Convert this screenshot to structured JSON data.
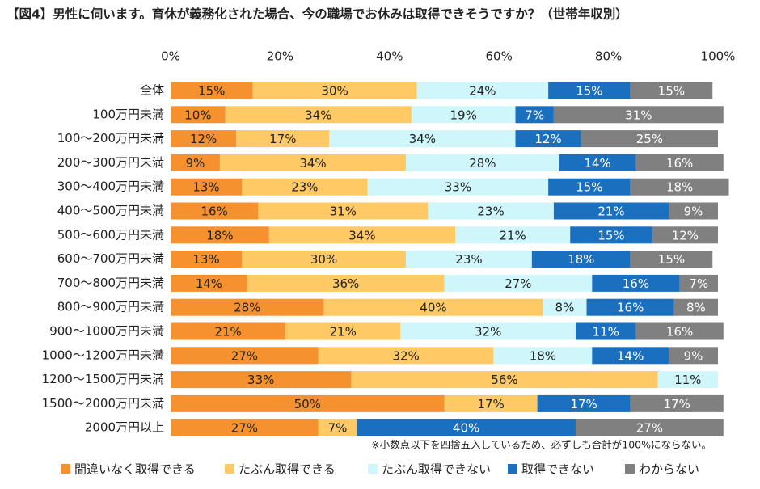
{
  "chart_data": {
    "type": "stacked-bar-horizontal",
    "title": "【図4】男性に伺います。育休が義務化された場合、今の職場でお休みは取得できそうですか？（世帯年収別）",
    "note": "※小数点以下を四捨五入しているため、必ずしも合計が100%にならない。",
    "xlim": [
      0,
      100
    ],
    "xticks": [
      {
        "value": 0,
        "label": "0%"
      },
      {
        "value": 20,
        "label": "20%"
      },
      {
        "value": 40,
        "label": "40%"
      },
      {
        "value": 60,
        "label": "60%"
      },
      {
        "value": 80,
        "label": "80%"
      },
      {
        "value": 100,
        "label": "100%"
      }
    ],
    "grid": false,
    "legend": "bottom",
    "categories": [
      "全体",
      "100万円未満",
      "100～200万円未満",
      "200～300万円未満",
      "300～400万円未満",
      "400～500万円未満",
      "500～600万円未満",
      "600～700万円未満",
      "700～800万円未満",
      "800～900万円未満",
      "900～1000万円未満",
      "1000～1200万円未満",
      "1200～1500万円未満",
      "1500～2000万円未満",
      "2000万円以上"
    ],
    "series": [
      {
        "name": "間違いなく取得できる",
        "color": "#f5922f",
        "label_color": "#222",
        "values": [
          15,
          10,
          12,
          9,
          13,
          16,
          18,
          13,
          14,
          28,
          21,
          27,
          33,
          50,
          27
        ],
        "value_labels": [
          "15%",
          "10%",
          "12%",
          "9%",
          "13%",
          "16%",
          "18%",
          "13%",
          "14%",
          "28%",
          "21%",
          "27%",
          "33%",
          "50%",
          "27%"
        ]
      },
      {
        "name": "たぶん取得できる",
        "color": "#ffc966",
        "label_color": "#222",
        "values": [
          30,
          34,
          17,
          34,
          23,
          31,
          34,
          30,
          36,
          40,
          21,
          32,
          56,
          17,
          7
        ],
        "value_labels": [
          "30%",
          "34%",
          "17%",
          "34%",
          "23%",
          "31%",
          "34%",
          "30%",
          "36%",
          "40%",
          "21%",
          "32%",
          "56%",
          "17%",
          "7%"
        ]
      },
      {
        "name": "たぶん取得できない",
        "color": "#cff7fb",
        "label_color": "#222",
        "values": [
          24,
          19,
          34,
          28,
          33,
          23,
          21,
          23,
          27,
          8,
          32,
          18,
          11,
          0,
          0
        ],
        "value_labels": [
          "24%",
          "19%",
          "34%",
          "28%",
          "33%",
          "23%",
          "21%",
          "23%",
          "27%",
          "8%",
          "32%",
          "18%",
          "11%",
          null,
          null
        ]
      },
      {
        "name": "取得できない",
        "color": "#1b6fbf",
        "label_color": "#fff",
        "values": [
          15,
          7,
          12,
          14,
          15,
          21,
          15,
          18,
          16,
          16,
          11,
          14,
          0,
          17,
          40
        ],
        "value_labels": [
          "15%",
          "7%",
          "12%",
          "14%",
          "15%",
          "21%",
          "15%",
          "18%",
          "16%",
          "16%",
          "11%",
          "14%",
          null,
          "17%",
          "40%"
        ]
      },
      {
        "name": "わからない",
        "color": "#808080",
        "label_color": "#fff",
        "values": [
          15,
          31,
          25,
          16,
          18,
          9,
          12,
          15,
          7,
          8,
          16,
          9,
          0,
          17,
          27
        ],
        "value_labels": [
          "15%",
          "31%",
          "25%",
          "16%",
          "18%",
          "9%",
          "12%",
          "15%",
          "7%",
          "8%",
          "16%",
          "9%",
          null,
          "17%",
          "27%"
        ]
      }
    ]
  }
}
